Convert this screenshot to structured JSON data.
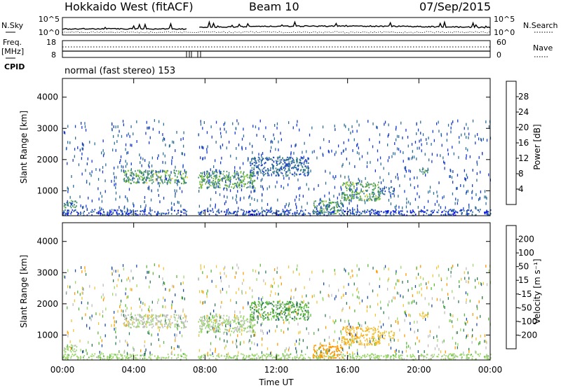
{
  "header": {
    "station": "Hokkaido West (fitACF)",
    "beam": "Beam 10",
    "date": "07/Sep/2015"
  },
  "noise_panel": {
    "left_label": "N.Sky",
    "right_label": "N.Search",
    "left_ticks": [
      "10^5",
      "10^0"
    ],
    "right_ticks": [
      "10^5",
      "10^0"
    ]
  },
  "freq_panel": {
    "left_label_1": "Freq.",
    "left_label_2": "[MHz]",
    "left_ticks": [
      "18",
      "8"
    ],
    "right_label": "Nave",
    "right_ticks": [
      "60",
      "0"
    ],
    "cpid_label": "CPID",
    "cpid_text": "normal (fast stereo) 153"
  },
  "colors": {
    "power_scale": [
      "#0000ff",
      "#1a3ccc",
      "#2e6f98",
      "#3f8c6e",
      "#78c23a",
      "#f2d21e",
      "#ff9900",
      "#ff5500",
      "#ff0000"
    ],
    "velocity_scale": [
      "#0000ff",
      "#1e4ca8",
      "#2e7a55",
      "#5ab83a",
      "#9bd86a",
      "#bdbdbd",
      "#f0c43a",
      "#ff9900",
      "#ff6a00",
      "#ff0000"
    ]
  },
  "chart_data": [
    {
      "type": "heatmap",
      "name": "power-panel",
      "ylabel": "Slant Range [km]",
      "yticks": [
        "1000",
        "2000",
        "3000",
        "4000"
      ],
      "ylim": [
        200,
        4600
      ],
      "xlim": [
        "00:00",
        "24:00"
      ],
      "colorbar": {
        "label": "Power [dB]",
        "ticks": [
          "4",
          "8",
          "12",
          "16",
          "20",
          "24",
          "28"
        ],
        "range": [
          0,
          32
        ]
      },
      "regions": [
        {
          "t0": 0.0,
          "t1": 24.0,
          "r0": 230,
          "r1": 420,
          "level": 6
        },
        {
          "t0": 0.0,
          "t1": 0.8,
          "r0": 480,
          "r1": 720,
          "level": 12
        },
        {
          "t0": 3.4,
          "t1": 7.0,
          "r0": 1250,
          "r1": 1680,
          "level": 14
        },
        {
          "t0": 7.6,
          "t1": 10.8,
          "r0": 1100,
          "r1": 1650,
          "level": 14
        },
        {
          "t0": 10.5,
          "t1": 13.8,
          "r0": 1500,
          "r1": 2100,
          "level": 9
        },
        {
          "t0": 14.0,
          "t1": 15.7,
          "r0": 280,
          "r1": 720,
          "level": 13
        },
        {
          "t0": 15.6,
          "t1": 17.8,
          "r0": 700,
          "r1": 1300,
          "level": 14
        },
        {
          "t0": 17.8,
          "t1": 18.6,
          "r0": 900,
          "r1": 1150,
          "level": 8
        },
        {
          "t0": 20.0,
          "t1": 20.5,
          "r0": 1550,
          "r1": 1750,
          "level": 12
        }
      ]
    },
    {
      "type": "heatmap",
      "name": "velocity-panel",
      "ylabel": "Slant Range [km]",
      "xlabel": "Time UT",
      "xticks": [
        "00:00",
        "04:00",
        "08:00",
        "12:00",
        "16:00",
        "20:00",
        "00:00"
      ],
      "yticks": [
        "1000",
        "2000",
        "3000",
        "4000"
      ],
      "ylim": [
        200,
        4600
      ],
      "colorbar": {
        "label": "Velocity [m s⁻¹]",
        "ticks": [
          "200",
          "100",
          "50",
          "15",
          "-15",
          "-50",
          "-100",
          "-200"
        ],
        "range": [
          -250,
          250
        ]
      },
      "regions": [
        {
          "t0": 0.0,
          "t1": 24.0,
          "r0": 230,
          "r1": 420,
          "v": 0
        },
        {
          "t0": 3.4,
          "t1": 7.0,
          "r0": 1250,
          "r1": 1680,
          "v": -5
        },
        {
          "t0": 7.6,
          "t1": 10.8,
          "r0": 1100,
          "r1": 1650,
          "v": -20
        },
        {
          "t0": 10.5,
          "t1": 13.8,
          "r0": 1500,
          "r1": 2100,
          "v": -10
        },
        {
          "t0": 14.0,
          "t1": 15.7,
          "r0": 280,
          "r1": 720,
          "v": 40
        },
        {
          "t0": 15.6,
          "t1": 17.8,
          "r0": 700,
          "r1": 1300,
          "v": -180
        },
        {
          "t0": 17.0,
          "t1": 18.6,
          "r0": 800,
          "r1": 1100,
          "v": -90
        },
        {
          "t0": 20.0,
          "t1": 20.5,
          "r0": 1550,
          "r1": 1750,
          "v": -70
        }
      ]
    }
  ]
}
